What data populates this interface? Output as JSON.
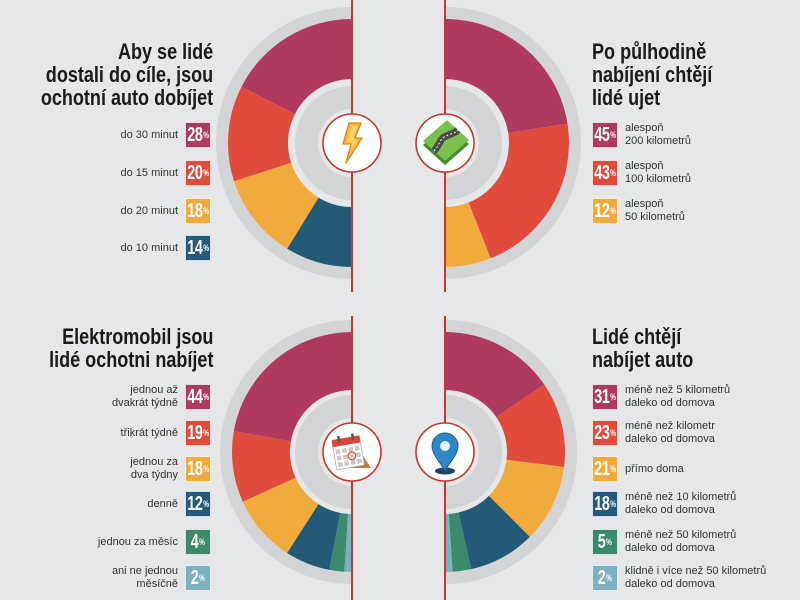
{
  "colors": {
    "background": "#e6e7e8",
    "ring": "#d3d4d6",
    "accent_line": "#c8372d",
    "icon_circle": "#ffffff",
    "title_text": "#1a1a1a",
    "label_text": "#333333"
  },
  "chart_data": [
    {
      "type": "pie",
      "variant": "half-donut",
      "title": "Aby se lidé\ndostali do cíle, jsou\nochotní auto dobíjet",
      "icon": "lightning-icon",
      "unit": "%",
      "categories": [
        "do 30 minut",
        "do 15 minut",
        "do 20 minut",
        "do 10 minut"
      ],
      "values": [
        28,
        20,
        18,
        14
      ],
      "colors": [
        "#b03960",
        "#e04b3b",
        "#f0ab3c",
        "#235a78"
      ]
    },
    {
      "type": "pie",
      "variant": "half-donut",
      "title": "Po půlhodině\nnabíjení chtějí\nlidé ujet",
      "icon": "road-icon",
      "unit": "%",
      "categories": [
        "alespoň\n200 kilometrů",
        "alespoň\n100 kilometrů",
        "alespoň\n50 kilometrů"
      ],
      "values": [
        45,
        43,
        12
      ],
      "colors": [
        "#b03960",
        "#e04b3b",
        "#f0ab3c"
      ]
    },
    {
      "type": "pie",
      "variant": "half-donut",
      "title": "Elektromobil jsou\nlidé ochotni nabíjet",
      "icon": "calendar-icon",
      "unit": "%",
      "categories": [
        "jednou až\ndvakrát týdně",
        "třikrát týdně",
        "jednou za\ndva týdny",
        "denně",
        "jednou za měsíc",
        "ani ne jednou\nměsíčně"
      ],
      "values": [
        44,
        19,
        18,
        12,
        4,
        2
      ],
      "colors": [
        "#b03960",
        "#e04b3b",
        "#f0ab3c",
        "#235a78",
        "#3b8a6b",
        "#7cb2bf"
      ]
    },
    {
      "type": "pie",
      "variant": "half-donut",
      "title": "Lidé chtějí\nnabíjet auto",
      "icon": "map-pin-icon",
      "unit": "%",
      "categories": [
        "méně než 5 kilometrů\ndaleko od domova",
        "méně než kilometr\ndaleko od domova",
        "přímo doma",
        "méně než 10 kilometrů\ndaleko od domova",
        "méně než 50 kilometrů\ndaleko od domova",
        "klidně i více než 50 kilometrů\ndaleko od domova"
      ],
      "values": [
        31,
        23,
        21,
        18,
        5,
        2
      ],
      "colors": [
        "#b03960",
        "#e04b3b",
        "#f0ab3c",
        "#235a78",
        "#3b8a6b",
        "#7cb2bf"
      ]
    }
  ]
}
